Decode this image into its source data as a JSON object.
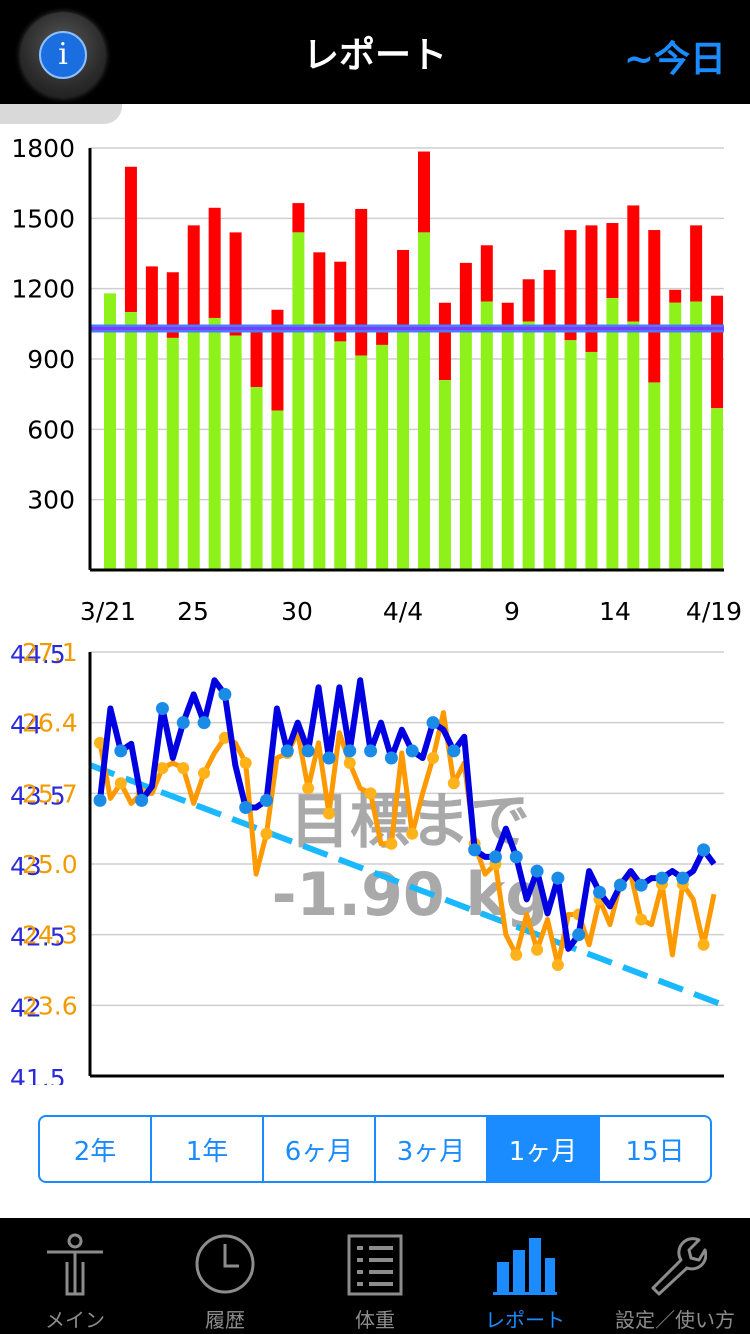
{
  "header": {
    "title": "レポート",
    "today_label": "~今日",
    "info_glyph": "i"
  },
  "calorie_chart": {
    "type": "bar",
    "y_ticks": [
      "1800",
      "1500",
      "1200",
      "900",
      "600",
      "300"
    ],
    "x_ticks": [
      "3/21",
      "25",
      "30",
      "4/4",
      "9",
      "14",
      "4/19"
    ],
    "target_line": 1030,
    "ylim": [
      0,
      1800
    ],
    "colors": {
      "green": "#8ef21a",
      "red": "#ff0000",
      "target": "#7b3cff"
    },
    "bars": [
      {
        "base": 1180,
        "total": 1180
      },
      {
        "base": 1100,
        "total": 1720
      },
      {
        "base": 1040,
        "total": 1295
      },
      {
        "base": 990,
        "total": 1270
      },
      {
        "base": 1020,
        "total": 1470
      },
      {
        "base": 1075,
        "total": 1545
      },
      {
        "base": 1000,
        "total": 1440
      },
      {
        "base": 780,
        "total": 1030
      },
      {
        "base": 680,
        "total": 1110
      },
      {
        "base": 1440,
        "total": 1565
      },
      {
        "base": 1050,
        "total": 1355
      },
      {
        "base": 975,
        "total": 1315
      },
      {
        "base": 915,
        "total": 1540
      },
      {
        "base": 960,
        "total": 1030
      },
      {
        "base": 1040,
        "total": 1365
      },
      {
        "base": 1440,
        "total": 1785
      },
      {
        "base": 810,
        "total": 1140
      },
      {
        "base": 1040,
        "total": 1310
      },
      {
        "base": 1145,
        "total": 1385
      },
      {
        "base": 1020,
        "total": 1140
      },
      {
        "base": 1060,
        "total": 1240
      },
      {
        "base": 1030,
        "total": 1280
      },
      {
        "base": 980,
        "total": 1450
      },
      {
        "base": 930,
        "total": 1470
      },
      {
        "base": 1160,
        "total": 1480
      },
      {
        "base": 1060,
        "total": 1555
      },
      {
        "base": 800,
        "total": 1450
      },
      {
        "base": 1140,
        "total": 1195
      },
      {
        "base": 1145,
        "total": 1470
      },
      {
        "base": 690,
        "total": 1170
      }
    ]
  },
  "weight_chart": {
    "type": "line",
    "y_ticks_weight": [
      "44.5",
      "44",
      "43.5",
      "43",
      "42.5",
      "42",
      "41.5"
    ],
    "y_ticks_fat": [
      "27.1",
      "26.4",
      "25.7",
      "25.0",
      "24.3",
      "23.6"
    ],
    "ylim_weight": [
      41.5,
      44.5
    ],
    "ylim_fat": [
      22.9,
      27.1
    ],
    "goal_text_line1": "目標まで",
    "goal_text_line2": "-1.90 kg",
    "colors": {
      "weight": "#0000e0",
      "weight_dot": "#1a8ce8",
      "fat": "#ff9900",
      "fat_dot": "#ffb21a",
      "trend": "#1ab8ff"
    },
    "trend_start": 43.7,
    "trend_end": 42.0,
    "weight": [
      43.45,
      44.1,
      43.8,
      43.85,
      43.45,
      43.55,
      44.1,
      43.75,
      44.0,
      44.2,
      44.0,
      44.3,
      44.2,
      43.7,
      43.4,
      43.4,
      43.45,
      44.1,
      43.8,
      44.0,
      43.8,
      44.25,
      43.75,
      44.25,
      43.8,
      44.3,
      43.8,
      44.0,
      43.75,
      43.95,
      43.8,
      43.75,
      44.0,
      43.95,
      43.8,
      43.9,
      43.1,
      43.05,
      43.05,
      43.25,
      43.05,
      42.75,
      42.95,
      42.65,
      42.9,
      42.4,
      42.5,
      42.95,
      42.8,
      42.7,
      42.85,
      42.95,
      42.85,
      42.9,
      42.9,
      42.95,
      42.9,
      42.95,
      43.1,
      43.0
    ],
    "fat": [
      26.2,
      25.65,
      25.8,
      25.6,
      25.7,
      25.7,
      25.95,
      26.0,
      25.95,
      25.6,
      25.9,
      26.1,
      26.25,
      26.2,
      26.0,
      24.9,
      25.3,
      26.05,
      26.1,
      26.3,
      25.75,
      26.2,
      25.5,
      26.3,
      26.0,
      25.75,
      25.7,
      25.2,
      25.2,
      26.1,
      25.3,
      25.7,
      26.05,
      26.5,
      25.8,
      26.0,
      25.2,
      24.9,
      25.0,
      24.3,
      24.1,
      24.5,
      24.15,
      24.45,
      24.0,
      24.5,
      24.5,
      24.2,
      24.65,
      24.4,
      24.8,
      24.9,
      24.45,
      24.4,
      24.8,
      24.1,
      24.8,
      24.65,
      24.2,
      24.7
    ]
  },
  "periods": {
    "items": [
      "2年",
      "1年",
      "6ヶ月",
      "3ヶ月",
      "1ヶ月",
      "15日"
    ],
    "selected_index": 4
  },
  "tabbar": {
    "items": [
      {
        "label": "メイン",
        "icon": "person-icon"
      },
      {
        "label": "履歴",
        "icon": "clock-icon"
      },
      {
        "label": "体重",
        "icon": "list-icon"
      },
      {
        "label": "レポート",
        "icon": "bar-chart-icon"
      },
      {
        "label": "設定／使い方",
        "icon": "wrench-icon"
      }
    ],
    "active_index": 3
  }
}
